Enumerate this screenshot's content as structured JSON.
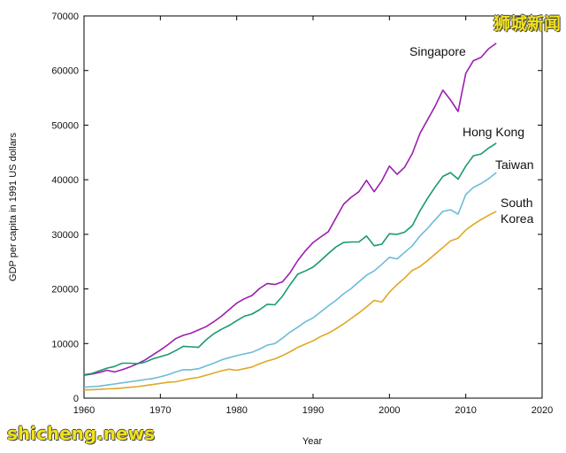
{
  "watermarks": {
    "top_right": "狮城新闻",
    "bottom_left": "shicheng.news"
  },
  "chart_data": {
    "type": "line",
    "title": "",
    "xlabel": "Year",
    "ylabel": "GDP per capita in 1991 US dollars",
    "xlim": [
      1960,
      2020
    ],
    "ylim": [
      0,
      70000
    ],
    "xticks": [
      1960,
      1970,
      1980,
      1990,
      2000,
      2010,
      2020
    ],
    "yticks": [
      0,
      10000,
      20000,
      30000,
      40000,
      50000,
      60000,
      70000
    ],
    "grid": false,
    "legend": "inline labels at line ends",
    "series": [
      {
        "name": "Singapore",
        "color": "#9b1fb0",
        "x": [
          1960,
          1961,
          1962,
          1963,
          1964,
          1965,
          1966,
          1967,
          1968,
          1969,
          1970,
          1971,
          1972,
          1973,
          1974,
          1975,
          1976,
          1977,
          1978,
          1979,
          1980,
          1981,
          1982,
          1983,
          1984,
          1985,
          1986,
          1987,
          1988,
          1989,
          1990,
          1991,
          1992,
          1993,
          1994,
          1995,
          1996,
          1997,
          1998,
          1999,
          2000,
          2001,
          2002,
          2003,
          2004,
          2005,
          2006,
          2007,
          2008,
          2009,
          2010,
          2011,
          2012,
          2013,
          2014
        ],
        "y": [
          4200,
          4400,
          4700,
          5100,
          4800,
          5200,
          5700,
          6300,
          7000,
          7900,
          8800,
          9800,
          10900,
          11500,
          11900,
          12500,
          13100,
          14000,
          15000,
          16200,
          17400,
          18200,
          18800,
          20100,
          21000,
          20800,
          21300,
          23000,
          25200,
          27000,
          28500,
          29500,
          30500,
          33000,
          35500,
          36800,
          37800,
          39900,
          37800,
          39800,
          42500,
          41000,
          42300,
          44800,
          48500,
          51000,
          53500,
          56400,
          54600,
          52500,
          59500,
          61800,
          62400,
          64000,
          65000
        ]
      },
      {
        "name": "Hong Kong",
        "color": "#1a9a70",
        "x": [
          1960,
          1961,
          1962,
          1963,
          1964,
          1965,
          1966,
          1967,
          1968,
          1969,
          1970,
          1971,
          1972,
          1973,
          1974,
          1975,
          1976,
          1977,
          1978,
          1979,
          1980,
          1981,
          1982,
          1983,
          1984,
          1985,
          1986,
          1987,
          1988,
          1989,
          1990,
          1991,
          1992,
          1993,
          1994,
          1995,
          1996,
          1997,
          1998,
          1999,
          2000,
          2001,
          2002,
          2003,
          2004,
          2005,
          2006,
          2007,
          2008,
          2009,
          2010,
          2011,
          2012,
          2013,
          2014
        ],
        "y": [
          4300,
          4500,
          5000,
          5500,
          5800,
          6400,
          6400,
          6300,
          6600,
          7200,
          7600,
          8000,
          8700,
          9500,
          9400,
          9300,
          10700,
          11800,
          12600,
          13300,
          14200,
          15000,
          15400,
          16200,
          17200,
          17100,
          18700,
          20800,
          22700,
          23300,
          24000,
          25200,
          26500,
          27700,
          28500,
          28600,
          28600,
          29700,
          27900,
          28200,
          30100,
          30000,
          30400,
          31600,
          34300,
          36600,
          38700,
          40600,
          41300,
          40100,
          42500,
          44400,
          44700,
          45800,
          46700
        ]
      },
      {
        "name": "Taiwan",
        "color": "#6bbcd8",
        "x": [
          1960,
          1961,
          1962,
          1963,
          1964,
          1965,
          1966,
          1967,
          1968,
          1969,
          1970,
          1971,
          1972,
          1973,
          1974,
          1975,
          1976,
          1977,
          1978,
          1979,
          1980,
          1981,
          1982,
          1983,
          1984,
          1985,
          1986,
          1987,
          1988,
          1989,
          1990,
          1991,
          1992,
          1993,
          1994,
          1995,
          1996,
          1997,
          1998,
          1999,
          2000,
          2001,
          2002,
          2003,
          2004,
          2005,
          2006,
          2007,
          2008,
          2009,
          2010,
          2011,
          2012,
          2013,
          2014
        ],
        "y": [
          2000,
          2100,
          2200,
          2400,
          2600,
          2800,
          3000,
          3200,
          3400,
          3600,
          3900,
          4300,
          4800,
          5200,
          5200,
          5400,
          5900,
          6400,
          7000,
          7400,
          7800,
          8100,
          8400,
          9000,
          9700,
          10000,
          11000,
          12100,
          13000,
          14000,
          14700,
          15800,
          16900,
          17900,
          19100,
          20100,
          21300,
          22500,
          23300,
          24500,
          25800,
          25500,
          26700,
          27900,
          29700,
          31100,
          32700,
          34200,
          34500,
          33700,
          37300,
          38600,
          39300,
          40200,
          41300
        ]
      },
      {
        "name": "South Korea",
        "color": "#e0a822",
        "x": [
          1960,
          1961,
          1962,
          1963,
          1964,
          1965,
          1966,
          1967,
          1968,
          1969,
          1970,
          1971,
          1972,
          1973,
          1974,
          1975,
          1976,
          1977,
          1978,
          1979,
          1980,
          1981,
          1982,
          1983,
          1984,
          1985,
          1986,
          1987,
          1988,
          1989,
          1990,
          1991,
          1992,
          1993,
          1994,
          1995,
          1996,
          1997,
          1998,
          1999,
          2000,
          2001,
          2002,
          2003,
          2004,
          2005,
          2006,
          2007,
          2008,
          2009,
          2010,
          2011,
          2012,
          2013,
          2014
        ],
        "y": [
          1500,
          1550,
          1600,
          1700,
          1750,
          1850,
          2000,
          2100,
          2300,
          2500,
          2700,
          2900,
          3000,
          3300,
          3600,
          3800,
          4200,
          4600,
          5000,
          5300,
          5100,
          5400,
          5700,
          6300,
          6800,
          7200,
          7800,
          8500,
          9300,
          9900,
          10500,
          11300,
          11900,
          12700,
          13600,
          14600,
          15600,
          16700,
          17900,
          17600,
          19400,
          20800,
          22000,
          23400,
          24100,
          25200,
          26400,
          27600,
          28800,
          29300,
          30800,
          31800,
          32700,
          33500,
          34200
        ]
      }
    ],
    "labels": [
      {
        "text": "Singapore"
      },
      {
        "text": "Hong Kong"
      },
      {
        "text": "Taiwan"
      },
      {
        "text": "South"
      },
      {
        "text": "Korea"
      }
    ]
  }
}
